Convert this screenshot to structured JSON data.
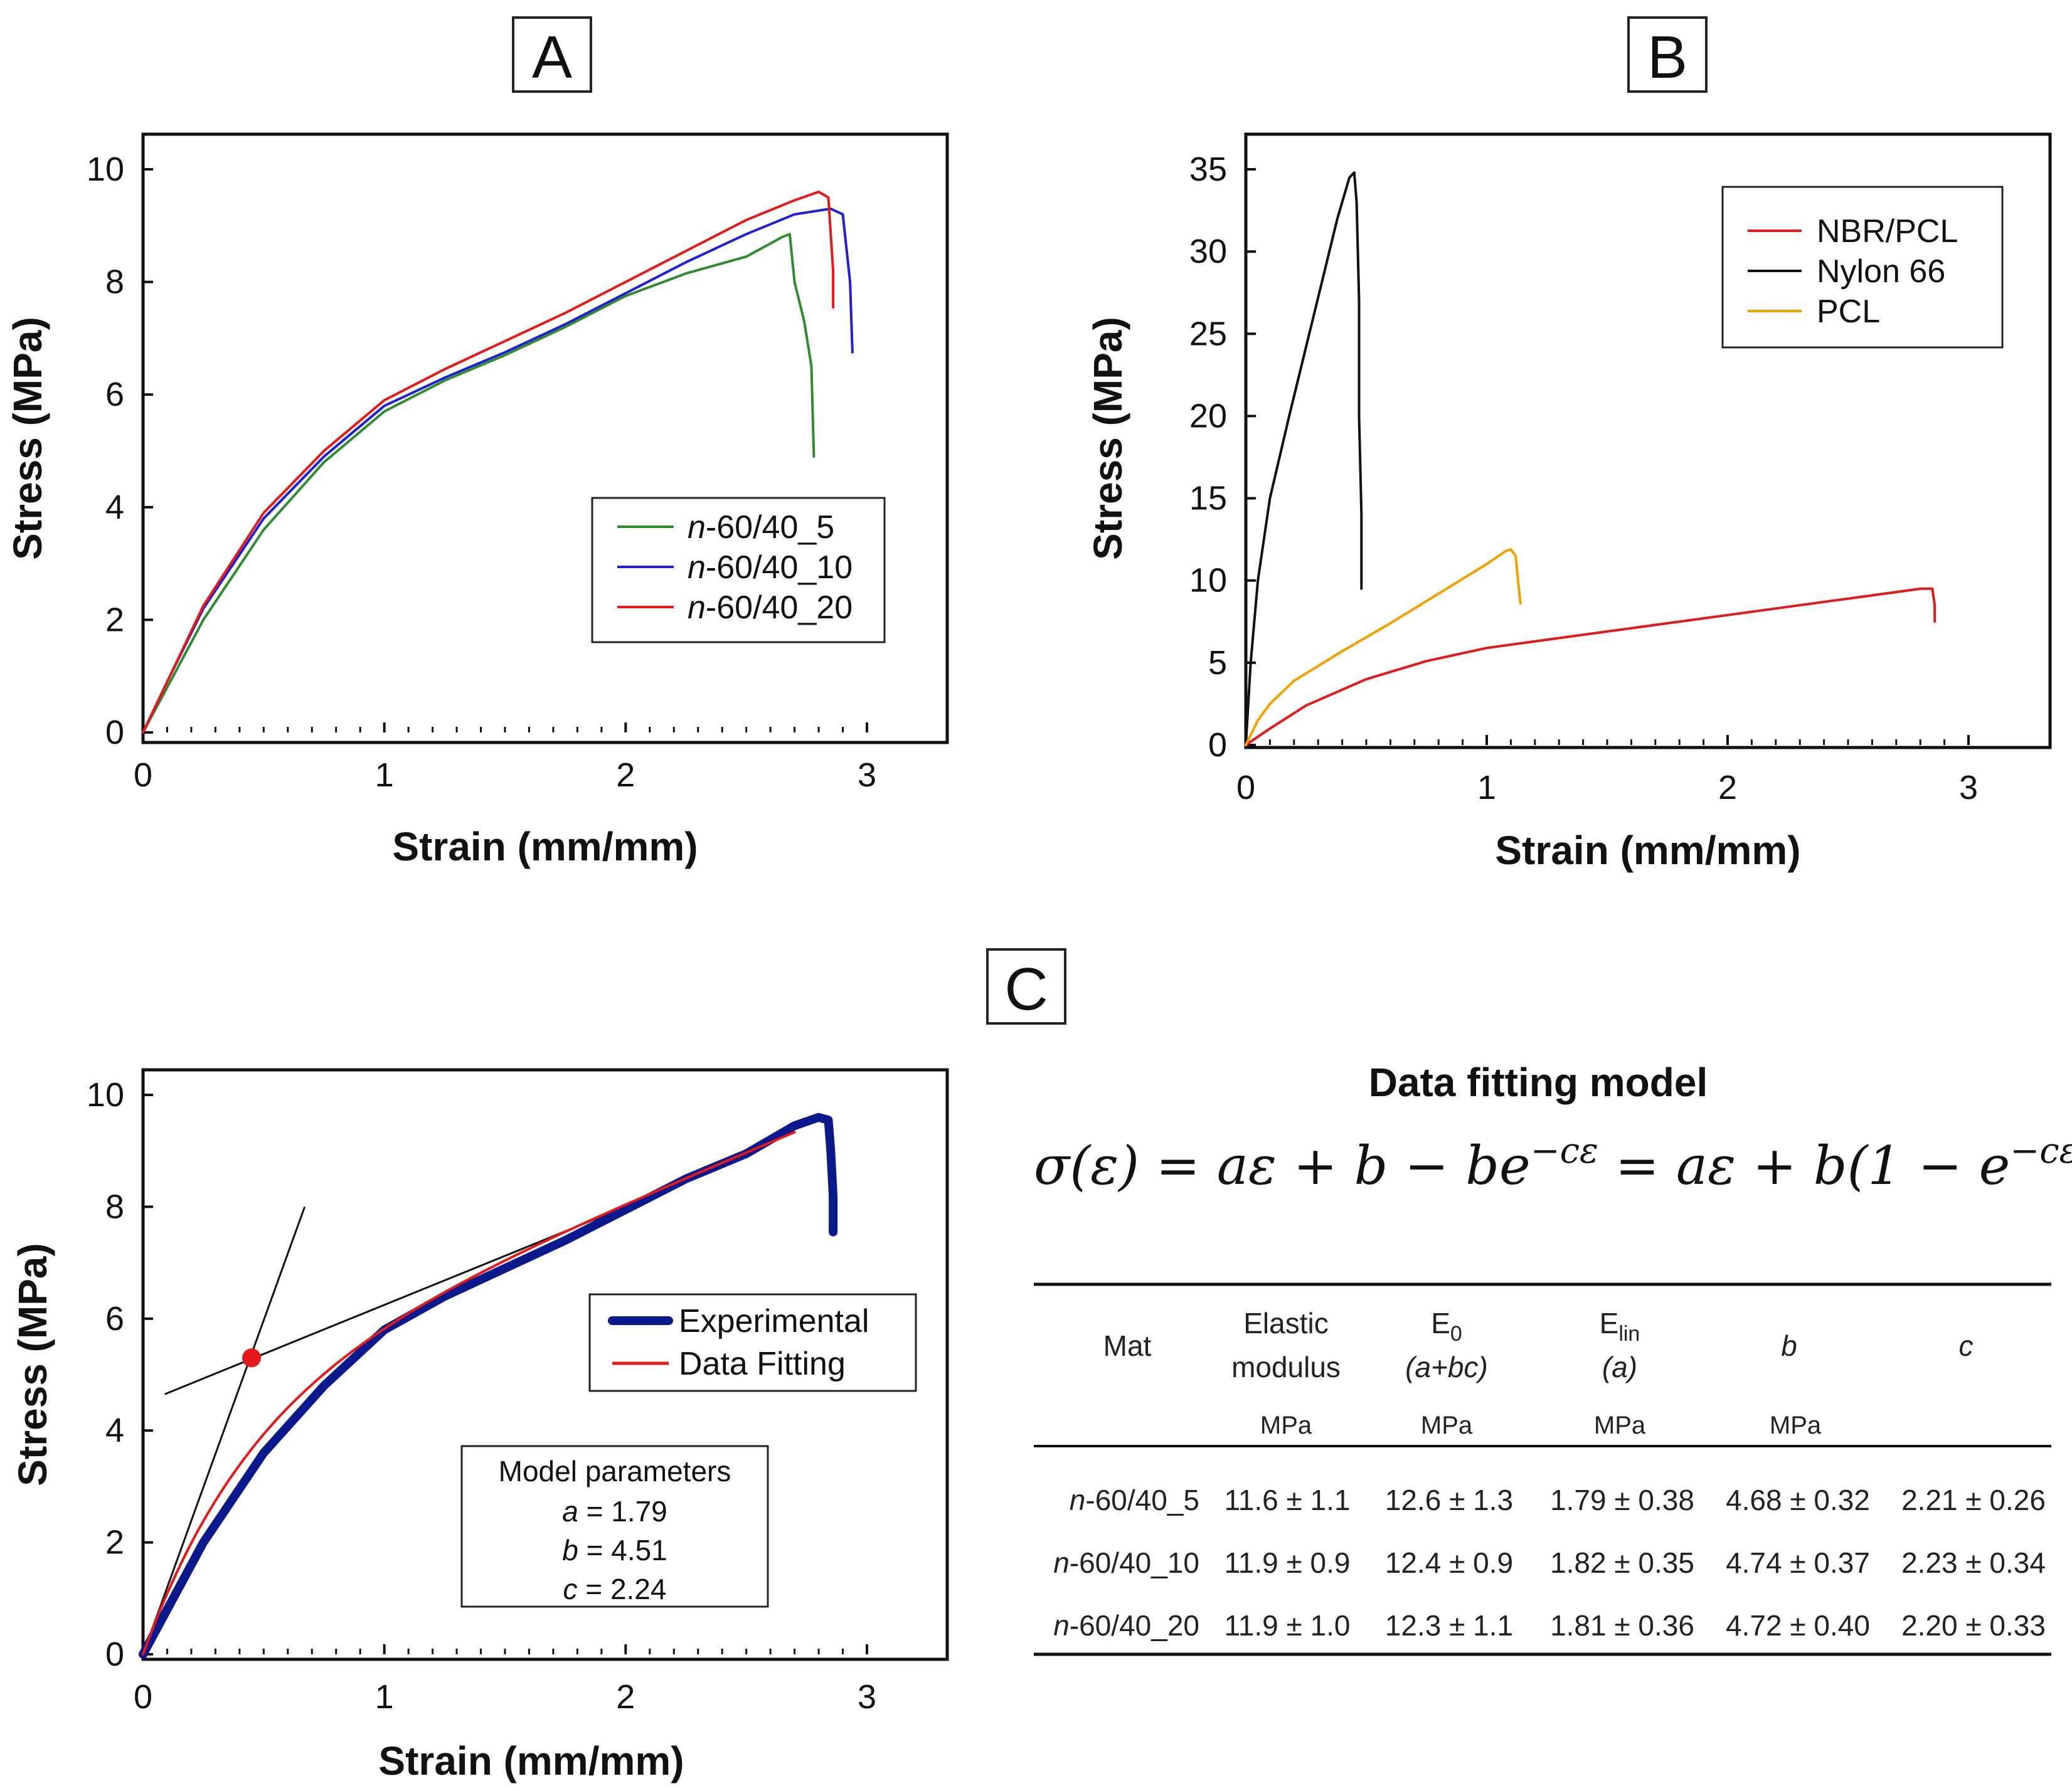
{
  "chart_data": [
    {
      "panel": "A",
      "type": "line",
      "xlabel": "Strain (mm/mm)",
      "ylabel": "Stress (MPa)",
      "xlim": [
        0,
        3
      ],
      "ylim": [
        0,
        10
      ],
      "xticks": [
        "0",
        "1",
        "2",
        "3"
      ],
      "yticks": [
        "0",
        "2",
        "4",
        "6",
        "8",
        "10"
      ],
      "legend": {
        "position": "lower-right"
      },
      "series": [
        {
          "name": "n-60/40_5",
          "prefix": "n",
          "suffix": "-60/40_5",
          "color": "#2e8b2e",
          "points": [
            [
              0,
              0
            ],
            [
              0.1,
              0.8
            ],
            [
              0.25,
              2.0
            ],
            [
              0.5,
              3.6
            ],
            [
              0.75,
              4.8
            ],
            [
              1.0,
              5.7
            ],
            [
              1.25,
              6.25
            ],
            [
              1.5,
              6.7
            ],
            [
              1.75,
              7.2
            ],
            [
              2.0,
              7.75
            ],
            [
              2.25,
              8.15
            ],
            [
              2.5,
              8.45
            ],
            [
              2.65,
              8.8
            ],
            [
              2.68,
              8.85
            ],
            [
              2.7,
              8.0
            ],
            [
              2.74,
              7.3
            ],
            [
              2.77,
              6.5
            ],
            [
              2.78,
              4.9
            ]
          ]
        },
        {
          "name": "n-60/40_10",
          "prefix": "n",
          "suffix": "-60/40_10",
          "color": "#1f1fd6",
          "points": [
            [
              0,
              0
            ],
            [
              0.1,
              0.9
            ],
            [
              0.25,
              2.2
            ],
            [
              0.5,
              3.8
            ],
            [
              0.75,
              4.9
            ],
            [
              1.0,
              5.8
            ],
            [
              1.25,
              6.3
            ],
            [
              1.5,
              6.75
            ],
            [
              1.75,
              7.25
            ],
            [
              2.0,
              7.8
            ],
            [
              2.25,
              8.35
            ],
            [
              2.5,
              8.85
            ],
            [
              2.7,
              9.2
            ],
            [
              2.85,
              9.3
            ],
            [
              2.9,
              9.2
            ],
            [
              2.93,
              8.0
            ],
            [
              2.94,
              6.75
            ]
          ]
        },
        {
          "name": "n-60/40_20",
          "prefix": "n",
          "suffix": "-60/40_20",
          "color": "#e31a1a",
          "points": [
            [
              0,
              0
            ],
            [
              0.1,
              0.9
            ],
            [
              0.25,
              2.25
            ],
            [
              0.5,
              3.9
            ],
            [
              0.75,
              5.0
            ],
            [
              1.0,
              5.9
            ],
            [
              1.25,
              6.45
            ],
            [
              1.5,
              6.95
            ],
            [
              1.75,
              7.45
            ],
            [
              2.0,
              8.0
            ],
            [
              2.25,
              8.55
            ],
            [
              2.5,
              9.1
            ],
            [
              2.7,
              9.45
            ],
            [
              2.8,
              9.6
            ],
            [
              2.84,
              9.5
            ],
            [
              2.86,
              8.2
            ],
            [
              2.86,
              7.55
            ]
          ]
        }
      ]
    },
    {
      "panel": "B",
      "type": "line",
      "xlabel": "Strain (mm/mm)",
      "ylabel": "Stress (MPa)",
      "xlim": [
        0,
        3
      ],
      "ylim": [
        0,
        35
      ],
      "xticks": [
        "0",
        "1",
        "2",
        "3"
      ],
      "yticks": [
        "0",
        "5",
        "10",
        "15",
        "20",
        "25",
        "30",
        "35"
      ],
      "legend": {
        "position": "top-right"
      },
      "series": [
        {
          "name": "NBR/PCL",
          "color": "#e31a1a",
          "points": [
            [
              0,
              0
            ],
            [
              0.1,
              1.0
            ],
            [
              0.25,
              2.4
            ],
            [
              0.5,
              4.0
            ],
            [
              0.75,
              5.1
            ],
            [
              1.0,
              5.9
            ],
            [
              1.25,
              6.4
            ],
            [
              1.5,
              6.9
            ],
            [
              1.75,
              7.4
            ],
            [
              2.0,
              7.9
            ],
            [
              2.25,
              8.4
            ],
            [
              2.5,
              8.9
            ],
            [
              2.7,
              9.3
            ],
            [
              2.8,
              9.5
            ],
            [
              2.85,
              9.5
            ],
            [
              2.86,
              8.5
            ],
            [
              2.86,
              7.5
            ]
          ]
        },
        {
          "name": "Nylon 66",
          "color": "#111111",
          "points": [
            [
              0,
              0
            ],
            [
              0.02,
              5.0
            ],
            [
              0.05,
              10.0
            ],
            [
              0.1,
              15.0
            ],
            [
              0.18,
              20.0
            ],
            [
              0.28,
              26.0
            ],
            [
              0.38,
              32.0
            ],
            [
              0.43,
              34.5
            ],
            [
              0.45,
              34.8
            ],
            [
              0.46,
              33.0
            ],
            [
              0.47,
              27.0
            ],
            [
              0.47,
              20.0
            ],
            [
              0.48,
              14.0
            ],
            [
              0.48,
              9.5
            ]
          ]
        },
        {
          "name": "PCL",
          "color": "#f4a000",
          "points": [
            [
              0,
              0
            ],
            [
              0.05,
              1.5
            ],
            [
              0.1,
              2.5
            ],
            [
              0.2,
              3.9
            ],
            [
              0.4,
              5.7
            ],
            [
              0.6,
              7.4
            ],
            [
              0.8,
              9.2
            ],
            [
              1.0,
              11.0
            ],
            [
              1.08,
              11.8
            ],
            [
              1.1,
              11.9
            ],
            [
              1.12,
              11.5
            ],
            [
              1.13,
              10.0
            ],
            [
              1.14,
              8.6
            ]
          ]
        }
      ]
    },
    {
      "panel": "C",
      "type": "line",
      "xlabel": "Strain (mm/mm)",
      "ylabel": "Stress (MPa)",
      "xlim": [
        0,
        3
      ],
      "ylim": [
        0,
        10
      ],
      "xticks": [
        "0",
        "1",
        "2",
        "3"
      ],
      "yticks": [
        "0",
        "2",
        "4",
        "6",
        "8",
        "10"
      ],
      "legend": {
        "position": "middle-right"
      },
      "series": [
        {
          "name": "Experimental",
          "color": "#0a1a8c",
          "points": [
            [
              0,
              0
            ],
            [
              0.1,
              0.8
            ],
            [
              0.25,
              2.0
            ],
            [
              0.5,
              3.6
            ],
            [
              0.75,
              4.8
            ],
            [
              1.0,
              5.8
            ],
            [
              1.25,
              6.4
            ],
            [
              1.5,
              6.9
            ],
            [
              1.75,
              7.4
            ],
            [
              2.0,
              7.95
            ],
            [
              2.25,
              8.5
            ],
            [
              2.5,
              8.95
            ],
            [
              2.6,
              9.2
            ],
            [
              2.7,
              9.45
            ],
            [
              2.8,
              9.6
            ],
            [
              2.84,
              9.55
            ],
            [
              2.85,
              9.0
            ],
            [
              2.86,
              8.2
            ],
            [
              2.86,
              7.55
            ]
          ]
        },
        {
          "name": "Data Fitting",
          "color": "#e31a1a",
          "model": {
            "a": 1.79,
            "b": 4.51,
            "c": 2.24
          },
          "x_max": 2.7
        }
      ],
      "tangent_lines": [
        {
          "points": [
            [
              0,
              0
            ],
            [
              0.67,
              8.0
            ]
          ],
          "color": "#111111"
        },
        {
          "points": [
            [
              0.09,
              4.65
            ],
            [
              2.0,
              8.0
            ]
          ],
          "color": "#111111"
        }
      ],
      "marker": {
        "x": 0.45,
        "y": 5.3,
        "color": "#e31a1a"
      },
      "params_box": {
        "title": "Model parameters",
        "rows": [
          {
            "name": "a",
            "value": " = 1.79"
          },
          {
            "name": "b",
            "value": " = 4.51"
          },
          {
            "name": "c",
            "value": " = 2.24"
          }
        ]
      }
    }
  ],
  "panels": {
    "a": "A",
    "b": "B",
    "c": "C"
  },
  "fitting": {
    "title": "Data fitting model",
    "equation": "σ(ε) = aε + b − be",
    "exp1": "−cε",
    "equation_mid": " = aε + b(1 − e",
    "exp2": "−cε",
    "equation_end": ")"
  },
  "table": {
    "headers": [
      {
        "line1": "Mat",
        "line2": "",
        "unit": ""
      },
      {
        "line1": "Elastic",
        "line2": "modulus",
        "unit": "MPa"
      },
      {
        "line1": "E",
        "sub": "0",
        "line2": "(a+bc)",
        "unit": "MPa"
      },
      {
        "line1": "E",
        "sub": "lin",
        "line2": "(a)",
        "unit": "MPa"
      },
      {
        "line1": "b",
        "line2": "",
        "unit": "MPa"
      },
      {
        "line1": "c",
        "line2": "",
        "unit": ""
      }
    ],
    "rows": [
      {
        "prefix": "n",
        "name": "-60/40_5",
        "values": [
          "11.6 ± 1.1",
          "12.6 ± 1.3",
          "1.79 ± 0.38",
          "4.68 ± 0.32",
          "2.21 ± 0.26"
        ]
      },
      {
        "prefix": "n",
        "name": "-60/40_10",
        "values": [
          "11.9 ± 0.9",
          "12.4 ± 0.9",
          "1.82 ± 0.35",
          "4.74 ± 0.37",
          "2.23 ± 0.34"
        ]
      },
      {
        "prefix": "n",
        "name": "-60/40_20",
        "values": [
          "11.9 ± 1.0",
          "12.3 ± 1.1",
          "1.81 ± 0.36",
          "4.72 ± 0.40",
          "2.20 ± 0.33"
        ]
      }
    ]
  }
}
